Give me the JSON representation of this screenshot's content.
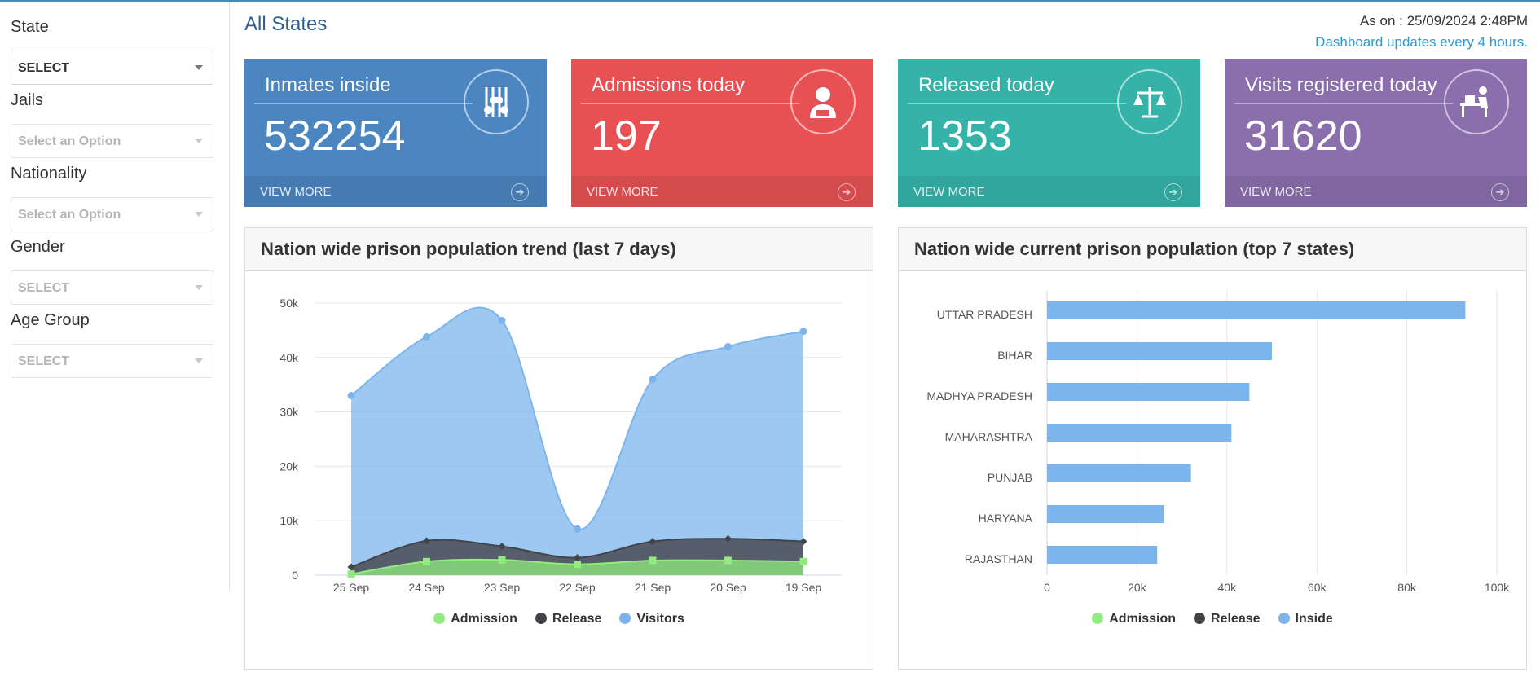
{
  "sidebar": {
    "filters": [
      {
        "label": "State",
        "value": "SELECT",
        "disabled": false
      },
      {
        "label": "Jails",
        "value": "Select an Option",
        "disabled": true
      },
      {
        "label": "Nationality",
        "value": "Select an Option",
        "disabled": true
      },
      {
        "label": "Gender",
        "value": "SELECT",
        "disabled": true
      },
      {
        "label": "Age Group",
        "value": "SELECT",
        "disabled": true
      }
    ]
  },
  "header": {
    "title": "All States",
    "as_on": "As on : 25/09/2024 2:48PM",
    "updates": "Dashboard updates every 4 hours."
  },
  "cards": [
    {
      "label": "Inmates inside",
      "value": "532254",
      "footer": "VIEW MORE",
      "color": "#4b86c1",
      "icon": "jail-bars-icon"
    },
    {
      "label": "Admissions today",
      "value": "197",
      "footer": "VIEW MORE",
      "color": "#e85154",
      "icon": "prisoner-icon"
    },
    {
      "label": "Released today",
      "value": "1353",
      "footer": "VIEW MORE",
      "color": "#36b3a9",
      "icon": "scales-of-justice-icon"
    },
    {
      "label": "Visits registered today",
      "value": "31620",
      "footer": "VIEW MORE",
      "color": "#8a6fac",
      "icon": "visitor-desk-icon"
    }
  ],
  "trend_panel": {
    "title": "Nation wide prison population trend (last 7 days)"
  },
  "states_panel": {
    "title": "Nation wide current prison population (top 7 states)"
  },
  "chart_data": [
    {
      "type": "area",
      "categories": [
        "25 Sep",
        "24 Sep",
        "23 Sep",
        "22 Sep",
        "21 Sep",
        "20 Sep",
        "19 Sep"
      ],
      "series": [
        {
          "name": "Visitors",
          "color": "#7cb5ec",
          "values": [
            33000,
            43800,
            46800,
            8500,
            36000,
            42000,
            44800
          ]
        },
        {
          "name": "Release",
          "color": "#434348",
          "values": [
            1500,
            6300,
            5300,
            3200,
            6200,
            6700,
            6200
          ]
        },
        {
          "name": "Admission",
          "color": "#90ed7d",
          "values": [
            200,
            2500,
            2800,
            2000,
            2700,
            2700,
            2500
          ]
        }
      ],
      "legend": [
        "Admission",
        "Release",
        "Visitors"
      ],
      "ylim": [
        0,
        50000
      ],
      "yticks": [
        "0",
        "10k",
        "20k",
        "30k",
        "40k",
        "50k"
      ],
      "grid": true,
      "legend_position": "bottom"
    },
    {
      "type": "bar",
      "orientation": "horizontal",
      "categories": [
        "UTTAR PRADESH",
        "BIHAR",
        "MADHYA PRADESH",
        "MAHARASHTRA",
        "PUNJAB",
        "HARYANA",
        "RAJASTHAN"
      ],
      "series": [
        {
          "name": "Inside",
          "color": "#7cb5ec",
          "values": [
            93000,
            50000,
            45000,
            41000,
            32000,
            26000,
            24500
          ]
        }
      ],
      "legend": [
        "Admission",
        "Release",
        "Inside"
      ],
      "xlim": [
        0,
        100000
      ],
      "xticks": [
        "0",
        "20k",
        "40k",
        "60k",
        "80k",
        "100k"
      ],
      "grid": true,
      "legend_position": "bottom"
    }
  ],
  "legend_colors": {
    "Admission": "#90ed7d",
    "Release": "#434348",
    "Visitors": "#7cb5ec",
    "Inside": "#7cb5ec"
  }
}
